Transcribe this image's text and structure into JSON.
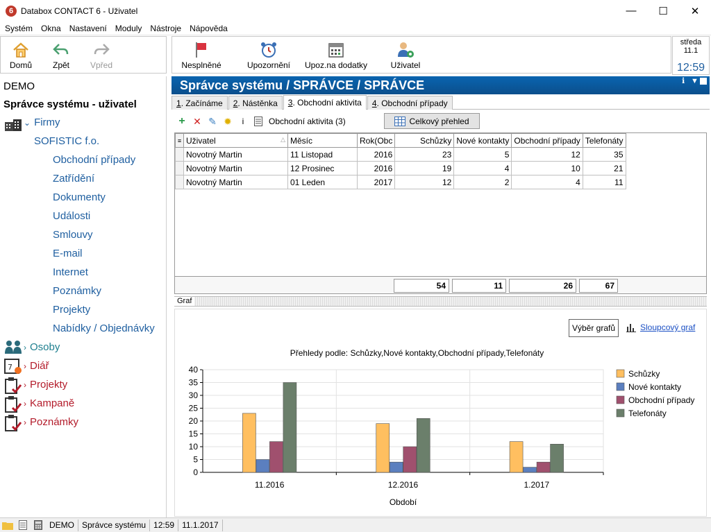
{
  "window": {
    "title": "Databox CONTACT 6 - Uživatel",
    "app_icon": "6"
  },
  "menu": [
    "Systém",
    "Okna",
    "Nastavení",
    "Moduly",
    "Nástroje",
    "Nápověda"
  ],
  "nav": {
    "home": "Domů",
    "back": "Zpět",
    "forward": "Vpřed"
  },
  "toolbar": {
    "unfinished": "Nesplněné",
    "notices": "Upozornění",
    "notices_extra": "Upoz.na dodatky",
    "user": "Uživatel"
  },
  "clock": {
    "day": "středa",
    "date": "11.1",
    "time": "12:59"
  },
  "sidebar": {
    "demo": "DEMO",
    "title": "Správce systému - uživatel",
    "firmy": "Firmy",
    "company": "SOFISTIC f.o.",
    "subitems": [
      "Obchodní případy",
      "Zatřídění",
      "Dokumenty",
      "Události",
      "Smlouvy",
      "E-mail",
      "Internet",
      "Poznámky",
      "Projekty",
      "Nabídky / Objednávky"
    ],
    "sections": [
      "Osoby",
      "Diář",
      "Projekty",
      "Kampaně",
      "Poznámky"
    ]
  },
  "header": {
    "title": "Správce systému / SPRÁVCE / SPRÁVCE"
  },
  "tabs": [
    {
      "num": "1",
      "label": ". Začínáme"
    },
    {
      "num": "2",
      "label": ". Nástěnka"
    },
    {
      "num": "3",
      "label": ". Obchodní aktivita"
    },
    {
      "num": "4",
      "label": ". Obchodní případy"
    }
  ],
  "gridtoolbar": {
    "label": "Obchodní aktivita (3)",
    "info": "i",
    "overview": "Celkový přehled"
  },
  "table": {
    "columns": [
      "Uživatel",
      "Měsíc",
      "Rok(Obc",
      "Schůzky",
      "Nové kontakty",
      "Obchodní případy",
      "Telefonáty"
    ],
    "rows": [
      [
        "Novotný Martin",
        "11 Listopad",
        "2016",
        "23",
        "5",
        "12",
        "35"
      ],
      [
        "Novotný Martin",
        "12 Prosinec",
        "2016",
        "19",
        "4",
        "10",
        "21"
      ],
      [
        "Novotný Martin",
        "01 Leden",
        "2017",
        "12",
        "2",
        "4",
        "11"
      ]
    ],
    "totals": [
      "54",
      "11",
      "26",
      "67"
    ]
  },
  "graph": {
    "splitter_label": "Graf",
    "select_button": "Výběr grafů",
    "bar_link": "Sloupcový graf"
  },
  "chart_data": {
    "type": "bar",
    "title": "Přehledy podle: Schůzky,Nové kontakty,Obchodní případy,Telefonáty",
    "categories": [
      "11.2016",
      "12.2016",
      "1.2017"
    ],
    "series": [
      {
        "name": "Schůzky",
        "values": [
          23,
          19,
          12
        ],
        "color": "#ffbf60"
      },
      {
        "name": "Nové kontakty",
        "values": [
          5,
          4,
          2
        ],
        "color": "#5b7fbf"
      },
      {
        "name": "Obchodní případy",
        "values": [
          12,
          10,
          4
        ],
        "color": "#a0506e"
      },
      {
        "name": "Telefonáty",
        "values": [
          35,
          21,
          11
        ],
        "color": "#6b7f6b"
      }
    ],
    "xlabel": "Období",
    "ylabel": "",
    "ylim": [
      0,
      40
    ],
    "yticks": [
      0,
      5,
      10,
      15,
      20,
      25,
      30,
      35,
      40
    ],
    "legend": "right",
    "grid": true
  },
  "status": {
    "user": "DEMO",
    "role": "Správce systému",
    "time": "12:59",
    "date": "11.1.2017"
  }
}
